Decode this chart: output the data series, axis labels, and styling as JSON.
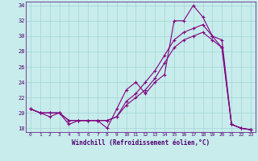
{
  "xlabel": "Windchill (Refroidissement éolien,°C)",
  "background_color": "#c8ecec",
  "line_color": "#800080",
  "grid_color": "#a8d8d8",
  "xlim": [
    -0.5,
    23.5
  ],
  "ylim": [
    17.5,
    34.5
  ],
  "yticks": [
    18,
    20,
    22,
    24,
    26,
    28,
    30,
    32,
    34
  ],
  "xticks": [
    0,
    1,
    2,
    3,
    4,
    5,
    6,
    7,
    8,
    9,
    10,
    11,
    12,
    13,
    14,
    15,
    16,
    17,
    18,
    19,
    20,
    21,
    22,
    23
  ],
  "series": [
    [
      20.5,
      20.0,
      19.5,
      20.0,
      18.5,
      19.0,
      19.0,
      19.0,
      18.0,
      20.5,
      23.0,
      24.0,
      22.5,
      24.0,
      25.0,
      32.0,
      32.0,
      34.0,
      32.5,
      30.0,
      29.5,
      18.5,
      18.0,
      17.8
    ],
    [
      20.5,
      20.0,
      20.0,
      20.0,
      19.0,
      19.0,
      19.0,
      19.0,
      19.0,
      19.5,
      21.0,
      22.0,
      23.0,
      24.5,
      26.5,
      28.5,
      29.5,
      30.0,
      30.5,
      29.5,
      28.5,
      18.5,
      18.0,
      17.8
    ],
    [
      20.5,
      20.0,
      20.0,
      20.0,
      19.0,
      19.0,
      19.0,
      19.0,
      19.0,
      19.5,
      21.5,
      22.5,
      24.0,
      25.5,
      27.5,
      29.5,
      30.5,
      31.0,
      31.5,
      30.0,
      28.5,
      18.5,
      18.0,
      17.8
    ]
  ]
}
